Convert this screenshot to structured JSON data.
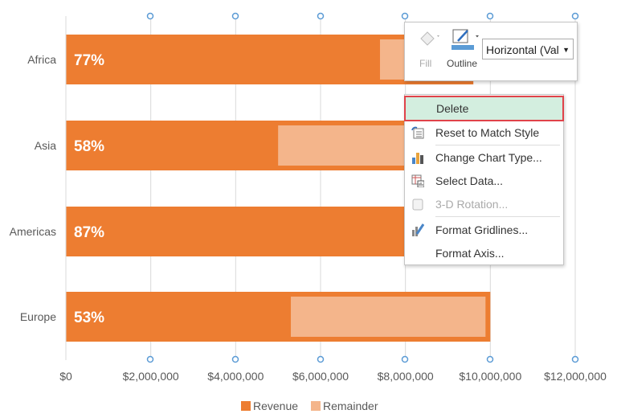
{
  "chart_data": {
    "type": "bar",
    "orientation": "horizontal",
    "stacked": true,
    "categories": [
      "Africa",
      "Asia",
      "Americas",
      "Europe"
    ],
    "series": [
      {
        "name": "Revenue",
        "values": [
          7400000,
          5000000,
          8000000,
          5300000
        ],
        "color": "#ED7D31"
      },
      {
        "name": "Remainder",
        "values": [
          2200000,
          3600000,
          1200000,
          4700000
        ],
        "color": "#F4B58B"
      }
    ],
    "data_labels": [
      "77%",
      "58%",
      "87%",
      "53%"
    ],
    "xlim": [
      0,
      12000000
    ],
    "x_ticks": [
      "$0",
      "$2,000,000",
      "$4,000,000",
      "$6,000,000",
      "$8,000,000",
      "$10,000,000",
      "$12,000,000"
    ],
    "grid": true,
    "legend": "bottom"
  },
  "toolbar": {
    "fill_label": "Fill",
    "outline_label": "Outline",
    "element_select": "Horizontal (Val",
    "fill_icon": "paint-bucket-icon",
    "outline_icon": "pen-outline-icon",
    "outline_color": "#5B9BD5"
  },
  "context_menu": {
    "items": [
      {
        "label": "Delete",
        "icon": "",
        "state": "highlighted"
      },
      {
        "label": "Reset to Match Style",
        "icon": "reset-style-icon"
      },
      {
        "label": "Change Chart Type...",
        "icon": "bar-chart-icon"
      },
      {
        "label": "Select Data...",
        "icon": "select-data-icon"
      },
      {
        "label": "3-D Rotation...",
        "icon": "cube-icon",
        "state": "disabled"
      },
      {
        "label": "Format Gridlines...",
        "icon": "format-brush-icon"
      },
      {
        "label": "Format Axis...",
        "icon": ""
      }
    ]
  },
  "selection_color": "#5B9BD5",
  "highlight_border": "#E0434A"
}
